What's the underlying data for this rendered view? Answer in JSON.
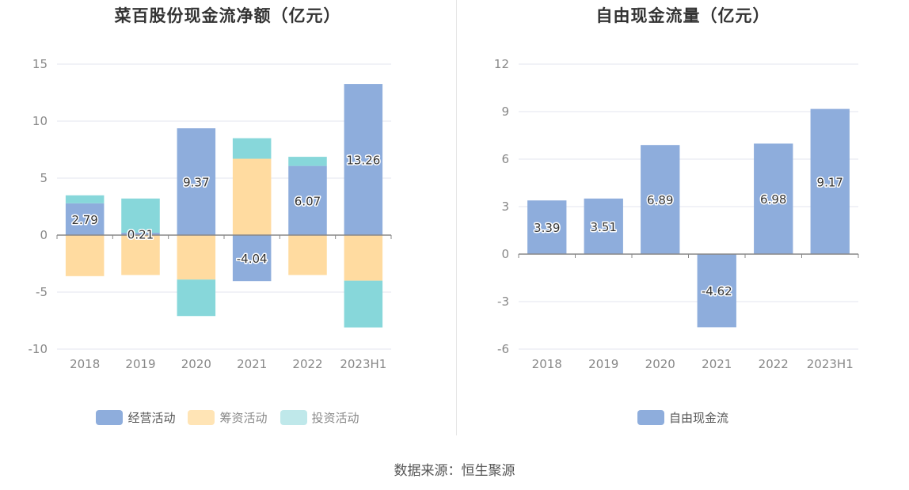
{
  "source_text": "数据来源：恒生聚源",
  "chart_data": [
    {
      "type": "bar",
      "stacked": true,
      "title": "菜百股份现金流净额（亿元）",
      "categories": [
        "2018",
        "2019",
        "2020",
        "2021",
        "2022",
        "2023H1"
      ],
      "ylim": [
        -10,
        15
      ],
      "yticks": [
        -10,
        -5,
        0,
        5,
        10,
        15
      ],
      "grid": true,
      "legend_position": "bottom",
      "series": [
        {
          "name": "经营活动",
          "color": "#8eaddc",
          "values": [
            2.79,
            0.21,
            9.37,
            -4.04,
            6.07,
            13.26
          ],
          "show_labels": true
        },
        {
          "name": "筹资活动",
          "color": "#ffdba0",
          "values": [
            -3.6,
            -3.5,
            -3.9,
            6.7,
            -3.5,
            -4.0
          ],
          "show_labels": false
        },
        {
          "name": "投资活动",
          "color": "#87d7da",
          "values": [
            0.7,
            3.0,
            -3.2,
            1.8,
            0.8,
            -4.1
          ],
          "show_labels": false
        }
      ]
    },
    {
      "type": "bar",
      "title": "自由现金流量（亿元）",
      "categories": [
        "2018",
        "2019",
        "2020",
        "2021",
        "2022",
        "2023H1"
      ],
      "ylim": [
        -6,
        12
      ],
      "yticks": [
        -6,
        -3,
        0,
        3,
        6,
        9,
        12
      ],
      "grid": true,
      "legend_position": "bottom",
      "series": [
        {
          "name": "自由现金流",
          "color": "#8eaddc",
          "values": [
            3.39,
            3.51,
            6.89,
            -4.62,
            6.98,
            9.17
          ],
          "show_labels": true
        }
      ]
    }
  ]
}
